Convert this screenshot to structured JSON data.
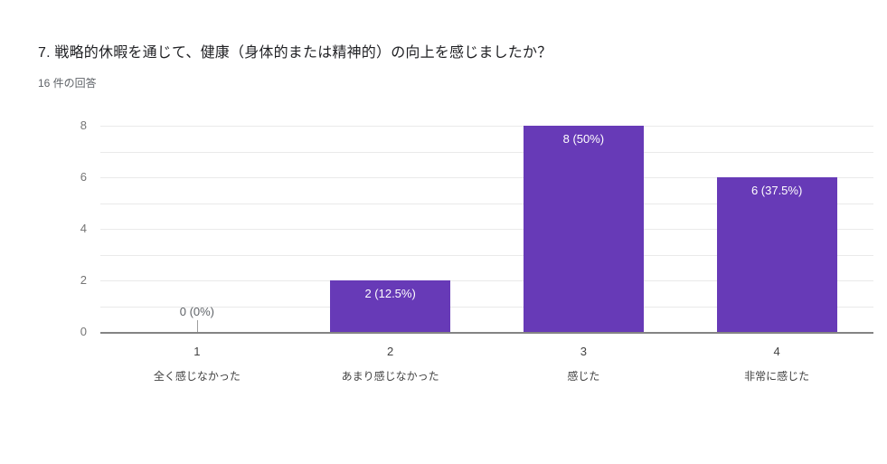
{
  "header": {
    "title": "7. 戦略的休暇を通じて、健康（身体的または精神的）の向上を感じましたか？",
    "responses_count": "16 件の回答"
  },
  "chart_data": {
    "type": "bar",
    "title": "7. 戦略的休暇を通じて、健康（身体的または精神的）の向上を感じましたか？",
    "subtitle": "16 件の回答",
    "categories": [
      "1",
      "2",
      "3",
      "4"
    ],
    "category_sublabels": [
      "全く感じなかった",
      "あまり感じなかった",
      "感じた",
      "非常に感じた"
    ],
    "values": [
      0,
      2,
      8,
      6
    ],
    "data_labels": [
      "0 (0%)",
      "2 (12.5%)",
      "8 (50%)",
      "6 (37.5%)"
    ],
    "xlabel": "",
    "ylabel": "",
    "ylim": [
      0,
      8
    ],
    "yticks": [
      0,
      2,
      4,
      6,
      8
    ],
    "grid": true,
    "legend": "none",
    "colors": {
      "bar": "#673ab7",
      "label_inside": "#ffffff",
      "label_outside": "#5f6368",
      "gridline": "#eaeaea",
      "baseline": "#848484",
      "y_tick_text": "#757575",
      "x_tick_text": "#424242"
    }
  }
}
